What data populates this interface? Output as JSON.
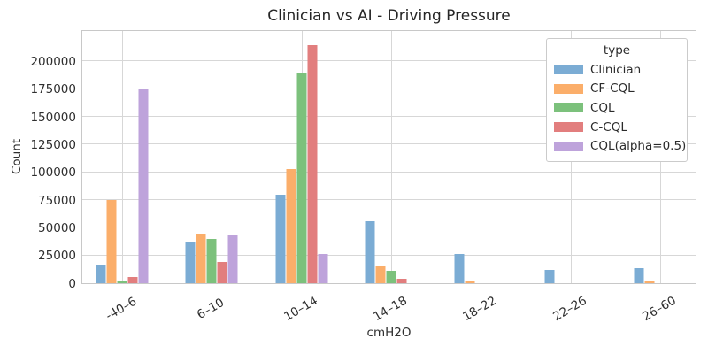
{
  "figure": {
    "background": "#ffffff",
    "grid_color": "#d7d7d7",
    "border_color": "#c8c8c8",
    "text_color": "#2b2b2b"
  },
  "chart_data": {
    "type": "bar",
    "title": "Clinician vs AI - Driving Pressure",
    "xlabel": "cmH2O",
    "ylabel": "Count",
    "legend_title": "type",
    "legend_position": "upper right",
    "grid": true,
    "categories": [
      "-40–6",
      "6–10",
      "10–14",
      "14–18",
      "18–22",
      "22–26",
      "26–60"
    ],
    "series": [
      {
        "name": "Clinician",
        "color": "#7bacd4",
        "values": [
          17000,
          37000,
          80000,
          56000,
          26000,
          12000,
          14000
        ]
      },
      {
        "name": "CF-CQL",
        "color": "#fbae6a",
        "values": [
          75000,
          45000,
          103000,
          16000,
          2500,
          0,
          2500
        ]
      },
      {
        "name": "CQL",
        "color": "#7cc17c",
        "values": [
          2500,
          40000,
          190000,
          11500,
          0,
          0,
          0
        ]
      },
      {
        "name": "C-CQL",
        "color": "#e27e7e",
        "values": [
          5500,
          19000,
          215000,
          4000,
          0,
          0,
          0
        ]
      },
      {
        "name": "CQL(alpha=0.5)",
        "color": "#bea3db",
        "values": [
          175000,
          43000,
          26500,
          0,
          0,
          0,
          0
        ]
      }
    ],
    "y_ticks": [
      0,
      25000,
      50000,
      75000,
      100000,
      125000,
      150000,
      175000,
      200000
    ],
    "ylim": [
      0,
      229000
    ]
  }
}
